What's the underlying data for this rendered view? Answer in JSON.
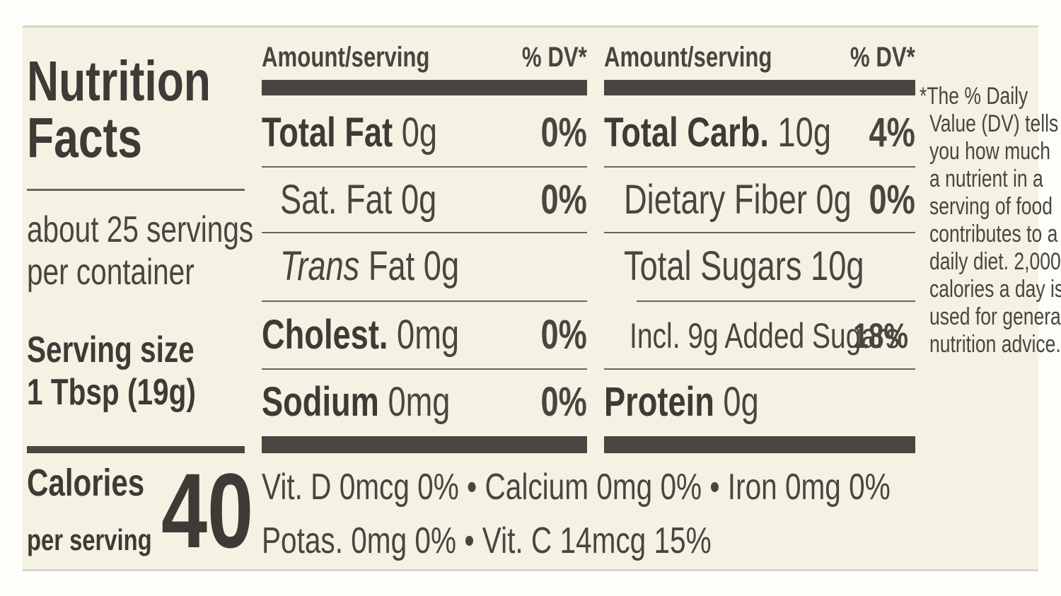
{
  "panel": {
    "title_line1": "Nutrition",
    "title_line2": "Facts",
    "servings_line1": "about 25 servings",
    "servings_line2": "per container",
    "serving_size_label": "Serving size",
    "serving_size_value": "1 Tbsp (19g)",
    "calories_label": "Calories",
    "calories_sub": "per serving",
    "calories_value": "40"
  },
  "left_column": {
    "header_amount": "Amount/serving",
    "header_dv": "% DV*",
    "rows": [
      {
        "name": "Total Fat",
        "amount": "0g",
        "dv": "0%"
      },
      {
        "name": "Sat. Fat",
        "amount": "0g",
        "dv": "0%"
      },
      {
        "name": "Trans",
        "suffix": "Fat 0g",
        "dv": ""
      },
      {
        "name": "Cholest.",
        "amount": "0mg",
        "dv": "0%"
      },
      {
        "name": "Sodium",
        "amount": "0mg",
        "dv": "0%"
      }
    ]
  },
  "right_column": {
    "header_amount": "Amount/serving",
    "header_dv": "% DV*",
    "rows": [
      {
        "name": "Total Carb.",
        "amount": "10g",
        "dv": "4%"
      },
      {
        "name": "Dietary Fiber",
        "amount": "0g",
        "dv": "0%"
      },
      {
        "name": "Total Sugars",
        "amount": "10g",
        "dv": ""
      },
      {
        "name": "Incl. 9g Added Sugars",
        "amount": "",
        "dv": "18%"
      },
      {
        "name": "Protein",
        "amount": "0g",
        "dv": ""
      }
    ]
  },
  "vitamins": {
    "line1": "Vit. D 0mcg 0% • Calcium 0mg 0% • Iron 0mg 0%",
    "line2": "Potas. 0mg 0% • Vit. C 14mcg 15%"
  },
  "footnote": [
    "*The % Daily",
    "Value (DV) tells",
    "you how much",
    "a nutrient in a",
    "serving of food",
    "contributes to a",
    "daily diet. 2,000",
    "calories a day is",
    "used for general",
    "nutrition advice."
  ],
  "colors": {
    "label_background": "#f4f2e3",
    "ink": "#4a4540"
  }
}
